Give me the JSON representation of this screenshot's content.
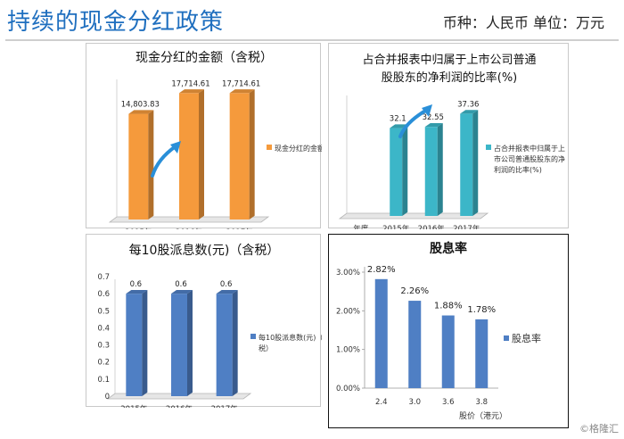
{
  "page": {
    "title": "持续的现金分红政策",
    "currency_note": "币种：人民币 单位：万元",
    "watermark": "©格隆汇"
  },
  "colors": {
    "orange": "#f59a3c",
    "teal": "#3cb6c8",
    "blue": "#4f7fc4",
    "title_blue": "#1f6fbf"
  },
  "chart_data": [
    {
      "id": "dividend-amount",
      "type": "bar",
      "title": "现金分红的金额（含税）",
      "categories": [
        "2015年",
        "2016年",
        "2017年"
      ],
      "values": [
        14803.83,
        17714.61,
        17714.61
      ],
      "labels": [
        "14,803.83",
        "17,714.61",
        "17,714.61"
      ],
      "legend": "现金分红的金额（含税）",
      "legend_position": "right",
      "ylim": [
        0,
        20000
      ],
      "color": "#f59a3c",
      "grid": false
    },
    {
      "id": "payout-ratio",
      "type": "bar",
      "title": "占合并报表中归属于上市公司普通股股东的净利润的比率(%)",
      "title_lines": [
        "占合并报表中归属于上市公司普通",
        "股股东的净利润的比率(%)"
      ],
      "categories": [
        "年度",
        "2015年",
        "2016年",
        "2017年"
      ],
      "values": [
        null,
        32.1,
        32.55,
        37.36
      ],
      "labels": [
        "",
        "32.1",
        "32.55",
        "37.36"
      ],
      "legend": "占合并报表中归属于上市公司普通股股东的净利润的比率(%)",
      "legend_lines": [
        "占合并报表中归属于上",
        "市公司普通股股东的净",
        "利润的比率(%)"
      ],
      "legend_position": "right",
      "ylim": [
        0,
        45
      ],
      "color": "#3cb6c8",
      "grid": false
    },
    {
      "id": "dividend-per-10",
      "type": "bar",
      "title": "每10股派息数(元)（含税）",
      "categories": [
        "2015年",
        "2016年",
        "2017年"
      ],
      "values": [
        0.6,
        0.6,
        0.6
      ],
      "labels": [
        "0.6",
        "0.6",
        "0.6"
      ],
      "legend": "每10股派息数(元)（含税）",
      "legend_lines": [
        "每10股派息数(元)（含",
        "税）"
      ],
      "legend_position": "right",
      "ylim": [
        0,
        0.7
      ],
      "yticks": [
        0,
        0.1,
        0.2,
        0.3,
        0.4,
        0.5,
        0.6,
        0.7
      ],
      "ytick_labels": [
        "0",
        "0.1",
        "0.2",
        "0.3",
        "0.4",
        "0.5",
        "0.6",
        "0.7"
      ],
      "color": "#4f7fc4",
      "grid": false
    },
    {
      "id": "dividend-yield",
      "type": "bar",
      "title": "股息率",
      "categories": [
        "2.4",
        "3.0",
        "3.6",
        "3.8"
      ],
      "values": [
        2.82,
        2.26,
        1.88,
        1.78
      ],
      "labels": [
        "2.82%",
        "2.26%",
        "1.88%",
        "1.78%"
      ],
      "xlabel": "股价（港元）",
      "legend": "股息率",
      "legend_position": "right",
      "ylim": [
        0,
        3
      ],
      "yticks": [
        0,
        1,
        2,
        3
      ],
      "ytick_labels": [
        "0.00%",
        "1.00%",
        "2.00%",
        "3.00%"
      ],
      "color": "#4f7fc4",
      "grid": false
    }
  ]
}
